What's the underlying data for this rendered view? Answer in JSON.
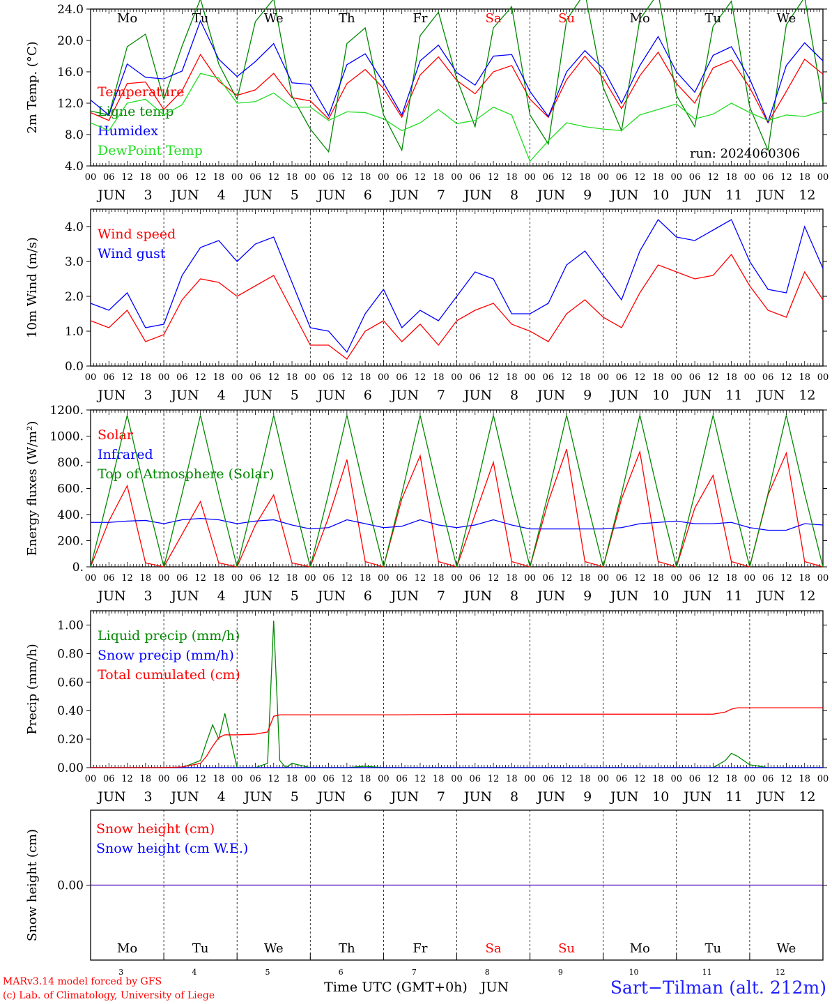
{
  "chart_data": [
    {
      "type": "line",
      "ylabel": "2m Temp. (°C)",
      "ylim": [
        4,
        24
      ],
      "yticks": [
        "4.0",
        "8.0",
        "12.0",
        "16.0",
        "20.0",
        "24.0"
      ],
      "run_label": "run: 2024060306",
      "x_hours": [
        0,
        6,
        12,
        18,
        24,
        30,
        36,
        42,
        48,
        54,
        60,
        66,
        72,
        78,
        84,
        90,
        96,
        102,
        108,
        114,
        120,
        126,
        132,
        138,
        144,
        150,
        156,
        162,
        168,
        174,
        180,
        186,
        192,
        198,
        204,
        210,
        216,
        222,
        228,
        234,
        240
      ],
      "series": [
        {
          "name": "Temperature",
          "color": "#ff0000",
          "values": [
            10.8,
            9.8,
            14.5,
            14.7,
            11.2,
            13.6,
            18.2,
            14.8,
            13.0,
            13.7,
            15.8,
            12.7,
            12.3,
            10.0,
            14.5,
            16.3,
            13.9,
            10.2,
            15.6,
            17.9,
            14.9,
            13.2,
            16.0,
            16.8,
            12.5,
            10.2,
            15.0,
            18.0,
            15.2,
            11.3,
            15.5,
            18.5,
            14.5,
            12.0,
            16.5,
            17.5,
            14.0,
            9.5,
            13.5,
            17.6,
            15.7
          ]
        },
        {
          "name": "Ligne temp",
          "color": "#008800",
          "values": [
            11.0,
            10.5,
            19.2,
            20.8,
            12.5,
            19.3,
            25.3,
            17.0,
            12.5,
            22.4,
            25.3,
            12.9,
            8.7,
            5.8,
            19.6,
            21.6,
            10.5,
            6.0,
            20.6,
            23.6,
            15.1,
            9.0,
            21.6,
            24.3,
            10.5,
            6.8,
            22.6,
            26.1,
            14.0,
            8.5,
            22.7,
            26.0,
            13.0,
            9.0,
            21.8,
            25.0,
            11.5,
            6.0,
            22.0,
            25.5,
            12.0
          ]
        },
        {
          "name": "Humidex",
          "color": "#0000ff",
          "values": [
            12.4,
            10.5,
            17.0,
            15.3,
            15.1,
            16.1,
            22.5,
            17.6,
            15.4,
            17.3,
            19.6,
            14.6,
            14.4,
            10.4,
            16.9,
            18.3,
            14.6,
            10.5,
            17.4,
            19.4,
            15.9,
            14.3,
            18.0,
            18.2,
            13.5,
            10.3,
            16.0,
            18.7,
            16.4,
            12.0,
            16.8,
            20.5,
            16.0,
            13.4,
            18.1,
            19.2,
            15.1,
            9.6,
            16.8,
            19.7,
            17.4
          ]
        },
        {
          "name": "DewPoint Temp",
          "color": "#22dd22",
          "values": [
            9.5,
            8.5,
            12.0,
            12.5,
            10.5,
            11.8,
            15.8,
            15.2,
            12.0,
            12.2,
            13.3,
            11.5,
            11.5,
            9.8,
            10.9,
            10.8,
            10.0,
            8.5,
            9.5,
            11.2,
            9.4,
            9.8,
            11.5,
            10.5,
            4.6,
            7.2,
            9.5,
            9.0,
            8.7,
            8.5,
            10.5,
            11.2,
            11.9,
            10.0,
            10.6,
            12.0,
            10.8,
            9.8,
            10.5,
            10.3,
            11.0
          ]
        }
      ]
    },
    {
      "type": "line",
      "ylabel": "10m Wind (m/s)",
      "ylim": [
        0,
        4.5
      ],
      "yticks": [
        "0.0",
        "1.0",
        "2.0",
        "3.0",
        "4.0"
      ],
      "x_hours": [
        0,
        6,
        12,
        18,
        24,
        30,
        36,
        42,
        48,
        54,
        60,
        66,
        72,
        78,
        84,
        90,
        96,
        102,
        108,
        114,
        120,
        126,
        132,
        138,
        144,
        150,
        156,
        162,
        168,
        174,
        180,
        186,
        192,
        198,
        204,
        210,
        216,
        222,
        228,
        234,
        240
      ],
      "series": [
        {
          "name": "Wind speed",
          "color": "#ff0000",
          "values": [
            1.3,
            1.1,
            1.6,
            0.7,
            0.9,
            1.9,
            2.5,
            2.4,
            2.0,
            2.3,
            2.6,
            1.6,
            0.6,
            0.6,
            0.2,
            1.0,
            1.3,
            0.7,
            1.2,
            0.6,
            1.3,
            1.6,
            1.8,
            1.2,
            1.0,
            0.7,
            1.5,
            1.9,
            1.4,
            1.1,
            2.1,
            2.9,
            2.7,
            2.5,
            2.6,
            3.2,
            2.3,
            1.6,
            1.4,
            2.7,
            1.9
          ]
        },
        {
          "name": "Wind gust",
          "color": "#0000ff",
          "values": [
            1.8,
            1.6,
            2.1,
            1.1,
            1.2,
            2.6,
            3.4,
            3.6,
            3.0,
            3.5,
            3.7,
            2.4,
            1.1,
            1.0,
            0.4,
            1.5,
            2.2,
            1.1,
            1.6,
            1.3,
            2.0,
            2.7,
            2.5,
            1.5,
            1.5,
            1.8,
            2.9,
            3.3,
            2.6,
            1.9,
            3.3,
            4.2,
            3.7,
            3.6,
            3.9,
            4.2,
            3.0,
            2.2,
            2.1,
            4.0,
            2.8
          ]
        }
      ]
    },
    {
      "type": "line",
      "ylabel": "Energy fluxes (W/m²)",
      "ylim": [
        0,
        1200
      ],
      "yticks": [
        "0.",
        "200.",
        "400.",
        "600.",
        "800.",
        "1000.",
        "1200."
      ],
      "x_hours": [
        0,
        6,
        12,
        18,
        24,
        30,
        36,
        42,
        48,
        54,
        60,
        66,
        72,
        78,
        84,
        90,
        96,
        102,
        108,
        114,
        120,
        126,
        132,
        138,
        144,
        150,
        156,
        162,
        168,
        174,
        180,
        186,
        192,
        198,
        204,
        210,
        216,
        222,
        228,
        234,
        240
      ],
      "series": [
        {
          "name": "Solar",
          "color": "#ff0000",
          "values": [
            0,
            350,
            620,
            30,
            0,
            250,
            500,
            30,
            0,
            320,
            550,
            30,
            0,
            380,
            820,
            40,
            0,
            520,
            850,
            40,
            0,
            400,
            800,
            40,
            0,
            500,
            900,
            40,
            0,
            520,
            880,
            40,
            0,
            450,
            700,
            40,
            0,
            550,
            870,
            40,
            0
          ]
        },
        {
          "name": "Infrared",
          "color": "#0000ff",
          "values": [
            340,
            340,
            350,
            355,
            330,
            360,
            370,
            360,
            330,
            350,
            360,
            320,
            290,
            300,
            360,
            330,
            300,
            310,
            360,
            320,
            300,
            320,
            360,
            320,
            290,
            290,
            290,
            290,
            290,
            300,
            330,
            340,
            350,
            330,
            330,
            340,
            300,
            280,
            280,
            330,
            320
          ]
        },
        {
          "name": "Top of Atmosphere (Solar)",
          "color": "#008800",
          "values": [
            0,
            560,
            1160,
            560,
            0,
            560,
            1160,
            560,
            0,
            560,
            1160,
            560,
            0,
            560,
            1160,
            560,
            0,
            560,
            1160,
            560,
            0,
            560,
            1160,
            560,
            0,
            560,
            1160,
            560,
            0,
            560,
            1160,
            560,
            0,
            560,
            1160,
            560,
            0,
            560,
            1160,
            560,
            0
          ]
        }
      ]
    },
    {
      "type": "line",
      "ylabel": "Precip (mm/h)",
      "ylim": [
        0,
        1.1
      ],
      "yticks": [
        "0.00",
        "0.20",
        "0.40",
        "0.60",
        "0.80",
        "1.00"
      ],
      "x_hours": [
        0,
        6,
        12,
        18,
        24,
        30,
        36,
        38,
        40,
        42,
        44,
        48,
        54,
        58,
        60,
        62,
        64,
        66,
        72,
        78,
        84,
        90,
        96,
        102,
        108,
        114,
        120,
        126,
        132,
        138,
        144,
        150,
        156,
        162,
        168,
        174,
        180,
        186,
        192,
        198,
        204,
        208,
        210,
        212,
        216,
        222,
        228,
        234,
        240
      ],
      "series": [
        {
          "name": "Liquid precip (mm/h)",
          "color": "#008800",
          "values": [
            0,
            0,
            0,
            0,
            0,
            0,
            0.05,
            0.18,
            0.3,
            0.2,
            0.38,
            0,
            0,
            0.03,
            1.03,
            0.05,
            0,
            0.03,
            0,
            0,
            0,
            0.01,
            0,
            0,
            0,
            0,
            0,
            0,
            0,
            0,
            0,
            0,
            0,
            0,
            0,
            0,
            0,
            0,
            0,
            0,
            0,
            0.05,
            0.1,
            0.08,
            0.02,
            0,
            0,
            0,
            0
          ]
        },
        {
          "name": "Snow precip (mm/h)",
          "color": "#0000ff",
          "values": [
            0,
            0,
            0,
            0,
            0,
            0,
            0,
            0,
            0,
            0,
            0,
            0,
            0,
            0,
            0,
            0,
            0,
            0,
            0,
            0,
            0,
            0,
            0,
            0,
            0,
            0,
            0,
            0,
            0,
            0,
            0,
            0,
            0,
            0,
            0,
            0,
            0,
            0,
            0,
            0,
            0,
            0,
            0,
            0,
            0,
            0,
            0,
            0,
            0
          ]
        },
        {
          "name": "Total cumulated (cm)",
          "color": "#ff0000",
          "values": [
            0,
            0,
            0,
            0,
            0,
            0.005,
            0.03,
            0.08,
            0.15,
            0.21,
            0.23,
            0.23,
            0.235,
            0.25,
            0.36,
            0.37,
            0.37,
            0.37,
            0.37,
            0.37,
            0.37,
            0.37,
            0.37,
            0.37,
            0.372,
            0.372,
            0.375,
            0.375,
            0.375,
            0.375,
            0.375,
            0.375,
            0.375,
            0.375,
            0.375,
            0.375,
            0.375,
            0.375,
            0.375,
            0.375,
            0.375,
            0.39,
            0.41,
            0.42,
            0.42,
            0.42,
            0.42,
            0.42,
            0.42
          ]
        }
      ]
    },
    {
      "type": "line",
      "ylabel": "Snow height (cm)",
      "ylim": [
        -1,
        1
      ],
      "yticks": [
        "0.00"
      ],
      "x_hours": [
        0,
        240
      ],
      "series": [
        {
          "name": "Snow height (cm)",
          "color": "#ff0000",
          "values": [
            0,
            0
          ]
        },
        {
          "name": "Snow height (cm W.E.)",
          "color": "#0000ff",
          "values": [
            0,
            0
          ]
        }
      ],
      "xlabel": "Time UTC (GMT+0h)"
    }
  ],
  "hour_ticks": [
    "00",
    "06",
    "12",
    "18"
  ],
  "final_hour_tick": "00",
  "days": [
    {
      "dow": "Mo",
      "date": "3",
      "weekend": false
    },
    {
      "dow": "Tu",
      "date": "4",
      "weekend": false
    },
    {
      "dow": "We",
      "date": "5",
      "weekend": false
    },
    {
      "dow": "Th",
      "date": "6",
      "weekend": false
    },
    {
      "dow": "Fr",
      "date": "7",
      "weekend": false
    },
    {
      "dow": "Sa",
      "date": "8",
      "weekend": true
    },
    {
      "dow": "Su",
      "date": "9",
      "weekend": true
    },
    {
      "dow": "Mo",
      "date": "10",
      "weekend": false
    },
    {
      "dow": "Tu",
      "date": "11",
      "weekend": false
    },
    {
      "dow": "We",
      "date": "12",
      "weekend": false
    }
  ],
  "month_label": "JUN",
  "bottom_month": "JUN",
  "xlabel": "Time UTC (GMT+0h)",
  "footer": {
    "credit_line1": "MARv3.14 model forced by GFS",
    "credit_line2": "(c) Lab. of Climatology, University of Liege",
    "station": "Sart−Tilman (alt. 212m)"
  },
  "colors": {
    "weekend": "#ff0000",
    "axis": "#000000",
    "station": "#2020ff"
  }
}
